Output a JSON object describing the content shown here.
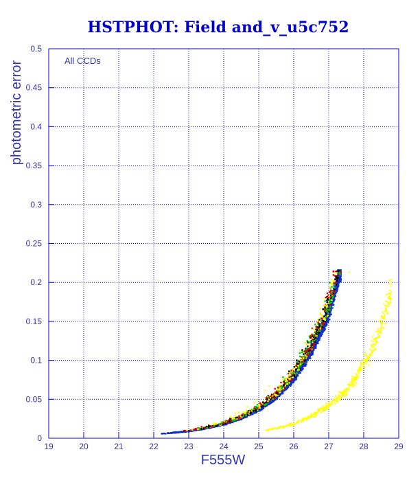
{
  "chart_data": {
    "type": "scatter",
    "title": "HSTPHOT: Field and_v_u5c752",
    "xlabel": "F555W",
    "ylabel": "photometric error",
    "xlim": [
      19,
      29
    ],
    "ylim": [
      0,
      0.5
    ],
    "xticks": [
      "19",
      "20",
      "21",
      "22",
      "23",
      "24",
      "25",
      "26",
      "27",
      "28",
      "29"
    ],
    "yticks": [
      "0",
      "0.05",
      "0.1",
      "0.15",
      "0.2",
      "0.25",
      "0.3",
      "0.35",
      "0.4",
      "0.45",
      "0.5"
    ],
    "grid": true,
    "annotation": "All CCDs",
    "colors": {
      "frame": "#0000cc",
      "grid": "#0000cc",
      "main_series": "#1030c8",
      "scatter_colors": [
        "#00cc00",
        "#dd0000",
        "#ffee00",
        "#000000",
        "#1030c8"
      ],
      "secondary_series": "#ffff00"
    },
    "series": [
      {
        "color": "#1030c8",
        "description_points": [
          {
            "x": 22.3,
            "y": 0.006
          },
          {
            "x": 23.0,
            "y": 0.009
          },
          {
            "x": 23.5,
            "y": 0.013
          },
          {
            "x": 24.0,
            "y": 0.018
          },
          {
            "x": 24.5,
            "y": 0.026
          },
          {
            "x": 25.0,
            "y": 0.037
          },
          {
            "x": 25.5,
            "y": 0.053
          },
          {
            "x": 26.0,
            "y": 0.077
          },
          {
            "x": 26.5,
            "y": 0.112
          },
          {
            "x": 27.0,
            "y": 0.16
          },
          {
            "x": 27.3,
            "y": 0.21
          }
        ]
      },
      {
        "color": "#ffff00",
        "description_points": [
          {
            "x": 25.2,
            "y": 0.01
          },
          {
            "x": 26.0,
            "y": 0.018
          },
          {
            "x": 26.5,
            "y": 0.028
          },
          {
            "x": 27.0,
            "y": 0.042
          },
          {
            "x": 27.5,
            "y": 0.06
          },
          {
            "x": 27.8,
            "y": 0.08
          },
          {
            "x": 28.3,
            "y": 0.12
          },
          {
            "x": 28.8,
            "y": 0.19
          }
        ]
      }
    ]
  }
}
